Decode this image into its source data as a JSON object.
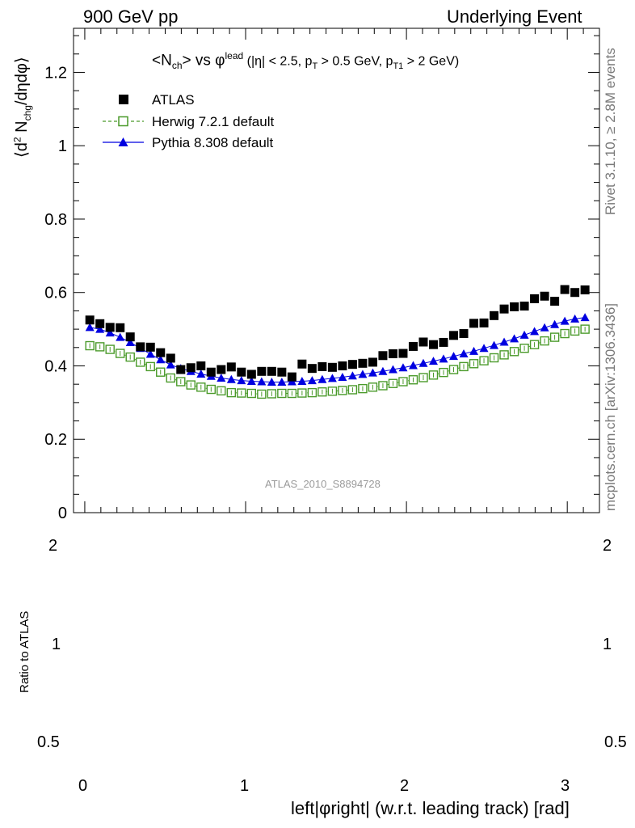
{
  "header": {
    "left": "900 GeV pp",
    "right": "Underlying Event"
  },
  "side_labels": {
    "rivet": "Rivet 3.1.10, ≥ 2.8M events",
    "mcplots": "mcplots.cern.ch [arXiv:1306.3436]"
  },
  "plot_title": {
    "a": "<N",
    "a_sub": "ch",
    "b": "> vs φ",
    "b_sup": "lead",
    "c": " (|η| < 2.5, p",
    "c_sub": "T",
    "d": " > 0.5 GeV, p",
    "d_sub": "T1",
    "e": " > 2 GeV)"
  },
  "y_label": {
    "a": "⟨d",
    "a_sup": "2",
    "b": " N",
    "b_sub": "chg",
    "c": "/dηdφ⟩"
  },
  "analysis_id": "ATLAS_2010_S8894728",
  "ratio_label": "Ratio to ATLAS",
  "x_label": "left|φright| (w.r.t. leading track) [rad]",
  "chart_data": {
    "type": "scatter",
    "title": "<Nch> vs φlead (|η| < 2.5, pT > 0.5 GeV, pT1 > 2 GeV)",
    "xlabel": "left|φright| (w.r.t. leading track) [rad]",
    "ylabel": "⟨d2 Nchg/dηdφ⟩",
    "xlim": [
      -0.07,
      3.2
    ],
    "ylim": [
      0,
      1.32
    ],
    "x_ticks": [
      "0",
      "1",
      "2",
      "3"
    ],
    "y_ticks": [
      "0",
      "0.2",
      "0.4",
      "0.6",
      "0.8",
      "1",
      "1.2"
    ],
    "ratio_ticks": [
      "0.5",
      "1",
      "2"
    ],
    "ratio_ylim": [
      0.5,
      2
    ],
    "legend_position": "top-left",
    "x": [
      0.0314,
      0.0942,
      0.1571,
      0.2199,
      0.2827,
      0.3456,
      0.4084,
      0.4712,
      0.5341,
      0.5969,
      0.6597,
      0.7226,
      0.7854,
      0.8482,
      0.9111,
      0.9739,
      1.0367,
      1.0996,
      1.1624,
      1.2252,
      1.2881,
      1.3509,
      1.4137,
      1.4765,
      1.5394,
      1.6022,
      1.665,
      1.7279,
      1.7907,
      1.8535,
      1.9164,
      1.9792,
      2.042,
      2.1049,
      2.1677,
      2.2305,
      2.2934,
      2.3562,
      2.419,
      2.4819,
      2.5447,
      2.6075,
      2.6704,
      2.7332,
      2.796,
      2.8588,
      2.9217,
      2.9845,
      3.0473,
      3.1102
    ],
    "series": [
      {
        "name": "ATLAS",
        "color": "#000000",
        "marker": "square-filled",
        "values": [
          0.525,
          0.515,
          0.505,
          0.504,
          0.479,
          0.452,
          0.451,
          0.436,
          0.421,
          0.39,
          0.395,
          0.4,
          0.383,
          0.39,
          0.397,
          0.383,
          0.377,
          0.385,
          0.385,
          0.383,
          0.37,
          0.405,
          0.393,
          0.398,
          0.396,
          0.4,
          0.404,
          0.407,
          0.41,
          0.428,
          0.433,
          0.434,
          0.453,
          0.465,
          0.458,
          0.464,
          0.483,
          0.488,
          0.516,
          0.517,
          0.537,
          0.555,
          0.561,
          0.563,
          0.583,
          0.59,
          0.576,
          0.608,
          0.6,
          0.607
        ]
      },
      {
        "name": "Herwig 7.2.1 default",
        "color": "#4a9a2a",
        "marker": "square-open",
        "values": [
          0.455,
          0.452,
          0.445,
          0.434,
          0.424,
          0.41,
          0.398,
          0.383,
          0.367,
          0.357,
          0.348,
          0.342,
          0.336,
          0.332,
          0.327,
          0.326,
          0.325,
          0.323,
          0.324,
          0.325,
          0.325,
          0.326,
          0.327,
          0.329,
          0.331,
          0.333,
          0.335,
          0.338,
          0.342,
          0.346,
          0.352,
          0.357,
          0.362,
          0.368,
          0.375,
          0.382,
          0.39,
          0.398,
          0.406,
          0.414,
          0.422,
          0.43,
          0.439,
          0.448,
          0.458,
          0.468,
          0.478,
          0.488,
          0.495,
          0.5
        ]
      },
      {
        "name": "Pythia 8.308 default",
        "color": "#0000e0",
        "marker": "triangle-filled",
        "values": [
          0.505,
          0.5,
          0.49,
          0.478,
          0.464,
          0.448,
          0.432,
          0.417,
          0.403,
          0.393,
          0.385,
          0.378,
          0.372,
          0.367,
          0.363,
          0.36,
          0.358,
          0.357,
          0.356,
          0.356,
          0.357,
          0.358,
          0.36,
          0.363,
          0.366,
          0.369,
          0.373,
          0.377,
          0.381,
          0.385,
          0.39,
          0.395,
          0.401,
          0.407,
          0.413,
          0.419,
          0.426,
          0.433,
          0.44,
          0.448,
          0.456,
          0.465,
          0.474,
          0.484,
          0.494,
          0.504,
          0.513,
          0.522,
          0.528,
          0.532
        ]
      }
    ]
  }
}
